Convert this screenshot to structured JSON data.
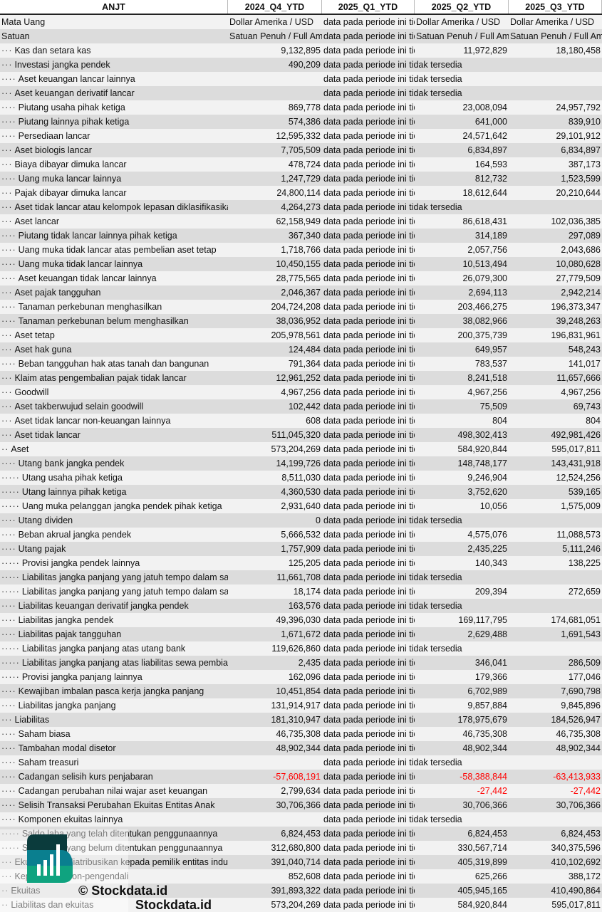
{
  "header": [
    "ANJT",
    "2024_Q4_YTD",
    "2025_Q1_YTD",
    "2025_Q2_YTD",
    "2025_Q3_YTD"
  ],
  "na_text": "data pada periode ini tidak tersedia",
  "rows": [
    {
      "label": "Mata Uang",
      "level": 0,
      "v": [
        "Dollar Amerika / USD",
        "data pada periode ini tidak tersedia",
        "Dollar Amerika / USD",
        "Dollar Amerika / USD"
      ],
      "text": true
    },
    {
      "label": "Satuan",
      "level": 0,
      "v": [
        "Satuan Penuh / Full Amount",
        "data pada periode ini tidak tersedia",
        "Satuan Penuh / Full Amount",
        "Satuan Penuh / Full Amount"
      ],
      "text": true
    },
    {
      "label": "Kas dan setara kas",
      "level": 3,
      "v": [
        "9,132,895",
        null,
        "11,972,829",
        "18,180,458"
      ]
    },
    {
      "label": "Investasi jangka pendek",
      "level": 3,
      "v": [
        "490,209",
        null,
        "",
        ""
      ]
    },
    {
      "label": "Aset keuangan lancar lainnya",
      "level": 4,
      "v": [
        "",
        null,
        "",
        ""
      ]
    },
    {
      "label": "Aset keuangan derivatif lancar",
      "level": 3,
      "v": [
        "",
        null,
        "",
        ""
      ]
    },
    {
      "label": "Piutang usaha pihak ketiga",
      "level": 4,
      "v": [
        "869,778",
        null,
        "23,008,094",
        "24,957,792"
      ]
    },
    {
      "label": "Piutang lainnya pihak ketiga",
      "level": 4,
      "v": [
        "574,386",
        null,
        "641,000",
        "839,910"
      ]
    },
    {
      "label": "Persediaan lancar",
      "level": 4,
      "v": [
        "12,595,332",
        null,
        "24,571,642",
        "29,101,912"
      ]
    },
    {
      "label": "Aset biologis lancar",
      "level": 3,
      "v": [
        "7,705,509",
        null,
        "6,834,897",
        "6,834,897"
      ]
    },
    {
      "label": "Biaya dibayar dimuka lancar",
      "level": 3,
      "v": [
        "478,724",
        null,
        "164,593",
        "387,173"
      ]
    },
    {
      "label": "Uang muka lancar lainnya",
      "level": 4,
      "v": [
        "1,247,729",
        null,
        "812,732",
        "1,523,599"
      ]
    },
    {
      "label": "Pajak dibayar dimuka lancar",
      "level": 3,
      "v": [
        "24,800,114",
        null,
        "18,612,644",
        "20,210,644"
      ]
    },
    {
      "label": "Aset tidak lancar atau kelompok lepasan diklasifikasikan",
      "level": 3,
      "v": [
        "4,264,273",
        null,
        "",
        ""
      ]
    },
    {
      "label": "Aset lancar",
      "level": 3,
      "v": [
        "62,158,949",
        null,
        "86,618,431",
        "102,036,385"
      ]
    },
    {
      "label": "Piutang tidak lancar lainnya pihak ketiga",
      "level": 4,
      "v": [
        "367,340",
        null,
        "314,189",
        "297,089"
      ]
    },
    {
      "label": "Uang muka tidak lancar atas pembelian aset tetap",
      "level": 4,
      "v": [
        "1,718,766",
        null,
        "2,057,756",
        "2,043,686"
      ]
    },
    {
      "label": "Uang muka tidak lancar lainnya",
      "level": 4,
      "v": [
        "10,450,155",
        null,
        "10,513,494",
        "10,080,628"
      ]
    },
    {
      "label": "Aset keuangan tidak lancar lainnya",
      "level": 4,
      "v": [
        "28,775,565",
        null,
        "26,079,300",
        "27,779,509"
      ]
    },
    {
      "label": "Aset pajak tangguhan",
      "level": 3,
      "v": [
        "2,046,367",
        null,
        "2,694,113",
        "2,942,214"
      ]
    },
    {
      "label": "Tanaman perkebunan menghasilkan",
      "level": 4,
      "v": [
        "204,724,208",
        null,
        "203,466,275",
        "196,373,347"
      ]
    },
    {
      "label": "Tanaman perkebunan belum menghasilkan",
      "level": 4,
      "v": [
        "38,036,952",
        null,
        "38,082,966",
        "39,248,263"
      ]
    },
    {
      "label": "Aset tetap",
      "level": 3,
      "v": [
        "205,978,561",
        null,
        "200,375,739",
        "196,831,961"
      ]
    },
    {
      "label": "Aset hak guna",
      "level": 3,
      "v": [
        "124,484",
        null,
        "649,957",
        "548,243"
      ]
    },
    {
      "label": "Beban tangguhan hak atas tanah dan bangunan",
      "level": 4,
      "v": [
        "791,364",
        null,
        "783,537",
        "141,017"
      ]
    },
    {
      "label": "Klaim atas pengembalian pajak tidak lancar",
      "level": 3,
      "v": [
        "12,961,252",
        null,
        "8,241,518",
        "11,657,666"
      ]
    },
    {
      "label": "Goodwill",
      "level": 3,
      "v": [
        "4,967,256",
        null,
        "4,967,256",
        "4,967,256"
      ]
    },
    {
      "label": "Aset takberwujud selain goodwill",
      "level": 3,
      "v": [
        "102,442",
        null,
        "75,509",
        "69,743"
      ]
    },
    {
      "label": "Aset tidak lancar non-keuangan lainnya",
      "level": 3,
      "v": [
        "608",
        null,
        "804",
        "804"
      ]
    },
    {
      "label": "Aset tidak lancar",
      "level": 3,
      "v": [
        "511,045,320",
        null,
        "498,302,413",
        "492,981,426"
      ]
    },
    {
      "label": "Aset",
      "level": 2,
      "v": [
        "573,204,269",
        null,
        "584,920,844",
        "595,017,811"
      ]
    },
    {
      "label": "Utang bank jangka pendek",
      "level": 4,
      "v": [
        "14,199,726",
        null,
        "148,748,177",
        "143,431,918"
      ]
    },
    {
      "label": "Utang usaha pihak ketiga",
      "level": 5,
      "v": [
        "8,511,030",
        null,
        "9,246,904",
        "12,524,256"
      ]
    },
    {
      "label": "Utang lainnya pihak ketiga",
      "level": 5,
      "v": [
        "4,360,530",
        null,
        "3,752,620",
        "539,165"
      ]
    },
    {
      "label": "Uang muka pelanggan jangka pendek pihak ketiga",
      "level": 5,
      "v": [
        "2,931,640",
        null,
        "10,056",
        "1,575,009"
      ]
    },
    {
      "label": "Utang dividen",
      "level": 4,
      "v": [
        "0",
        null,
        "",
        ""
      ]
    },
    {
      "label": "Beban akrual jangka pendek",
      "level": 4,
      "v": [
        "5,666,532",
        null,
        "4,575,076",
        "11,088,573"
      ]
    },
    {
      "label": "Utang pajak",
      "level": 4,
      "v": [
        "1,757,909",
        null,
        "2,435,225",
        "5,111,246"
      ]
    },
    {
      "label": "Provisi jangka pendek lainnya",
      "level": 5,
      "v": [
        "125,205",
        null,
        "140,343",
        "138,225"
      ]
    },
    {
      "label": "Liabilitas jangka panjang yang jatuh tempo dalam satu tahun",
      "level": 5,
      "v": [
        "11,661,708",
        null,
        "",
        ""
      ]
    },
    {
      "label": "Liabilitas jangka panjang yang jatuh tempo dalam satu tahun",
      "level": 5,
      "v": [
        "18,174",
        null,
        "209,394",
        "272,659"
      ]
    },
    {
      "label": "Liabilitas keuangan derivatif jangka pendek",
      "level": 4,
      "v": [
        "163,576",
        null,
        "",
        ""
      ]
    },
    {
      "label": "Liabilitas jangka pendek",
      "level": 4,
      "v": [
        "49,396,030",
        null,
        "169,117,795",
        "174,681,051"
      ]
    },
    {
      "label": "Liabilitas pajak tangguhan",
      "level": 4,
      "v": [
        "1,671,672",
        null,
        "2,629,488",
        "1,691,543"
      ]
    },
    {
      "label": "Liabilitas jangka panjang atas utang bank",
      "level": 5,
      "v": [
        "119,626,860",
        null,
        "",
        ""
      ]
    },
    {
      "label": "Liabilitas jangka panjang atas liabilitas sewa pembiayaan",
      "level": 5,
      "v": [
        "2,435",
        null,
        "346,041",
        "286,509"
      ]
    },
    {
      "label": "Provisi jangka panjang lainnya",
      "level": 5,
      "v": [
        "162,096",
        null,
        "179,366",
        "177,046"
      ]
    },
    {
      "label": "Kewajiban imbalan pasca kerja jangka panjang",
      "level": 4,
      "v": [
        "10,451,854",
        null,
        "6,702,989",
        "7,690,798"
      ]
    },
    {
      "label": "Liabilitas jangka panjang",
      "level": 4,
      "v": [
        "131,914,917",
        null,
        "9,857,884",
        "9,845,896"
      ]
    },
    {
      "label": "Liabilitas",
      "level": 3,
      "v": [
        "181,310,947",
        null,
        "178,975,679",
        "184,526,947"
      ]
    },
    {
      "label": "Saham biasa",
      "level": 4,
      "v": [
        "46,735,308",
        null,
        "46,735,308",
        "46,735,308"
      ]
    },
    {
      "label": "Tambahan modal disetor",
      "level": 4,
      "v": [
        "48,902,344",
        null,
        "48,902,344",
        "48,902,344"
      ]
    },
    {
      "label": "Saham treasuri",
      "level": 4,
      "v": [
        "",
        null,
        "",
        ""
      ]
    },
    {
      "label": "Cadangan selisih kurs penjabaran",
      "level": 4,
      "v": [
        "-57,608,191",
        null,
        "-58,388,844",
        "-63,413,933"
      ]
    },
    {
      "label": "Cadangan perubahan nilai wajar aset keuangan",
      "level": 4,
      "v": [
        "2,799,634",
        null,
        "-27,442",
        "-27,442"
      ]
    },
    {
      "label": "Selisih Transaksi Perubahan Ekuitas Entitas Anak",
      "level": 4,
      "v": [
        "30,706,366",
        null,
        "30,706,366",
        "30,706,366"
      ]
    },
    {
      "label": "Komponen ekuitas lainnya",
      "level": 4,
      "v": [
        "",
        null,
        "",
        ""
      ]
    },
    {
      "label": "Saldo laba yang telah ditentukan penggunaannya",
      "level": 5,
      "v": [
        "6,824,453",
        null,
        "6,824,453",
        "6,824,453"
      ]
    },
    {
      "label": "Saldo laba yang belum ditentukan penggunaannya",
      "level": 5,
      "v": [
        "312,680,800",
        null,
        "330,567,714",
        "340,375,596"
      ]
    },
    {
      "label": "Ekuitas yang diatribusikan kepada pemilik entitas induk",
      "level": 3,
      "v": [
        "391,040,714",
        null,
        "405,319,899",
        "410,102,692"
      ]
    },
    {
      "label": "Kepentingan non-pengendali",
      "level": 3,
      "v": [
        "852,608",
        null,
        "625,266",
        "388,172"
      ]
    },
    {
      "label": "Ekuitas",
      "level": 2,
      "v": [
        "391,893,322",
        null,
        "405,945,165",
        "410,490,864"
      ]
    },
    {
      "label": "Liabilitas dan ekuitas",
      "level": 2,
      "v": [
        "573,204,269",
        null,
        "584,920,844",
        "595,017,811"
      ]
    }
  ],
  "watermark": {
    "copyright": "© Stockdata.id",
    "brand": "Stockdata.id",
    "colors": [
      "#0b3b3c",
      "#0a7f8f",
      "#0fa37f"
    ]
  },
  "colors": {
    "negative": "#ff0000"
  }
}
